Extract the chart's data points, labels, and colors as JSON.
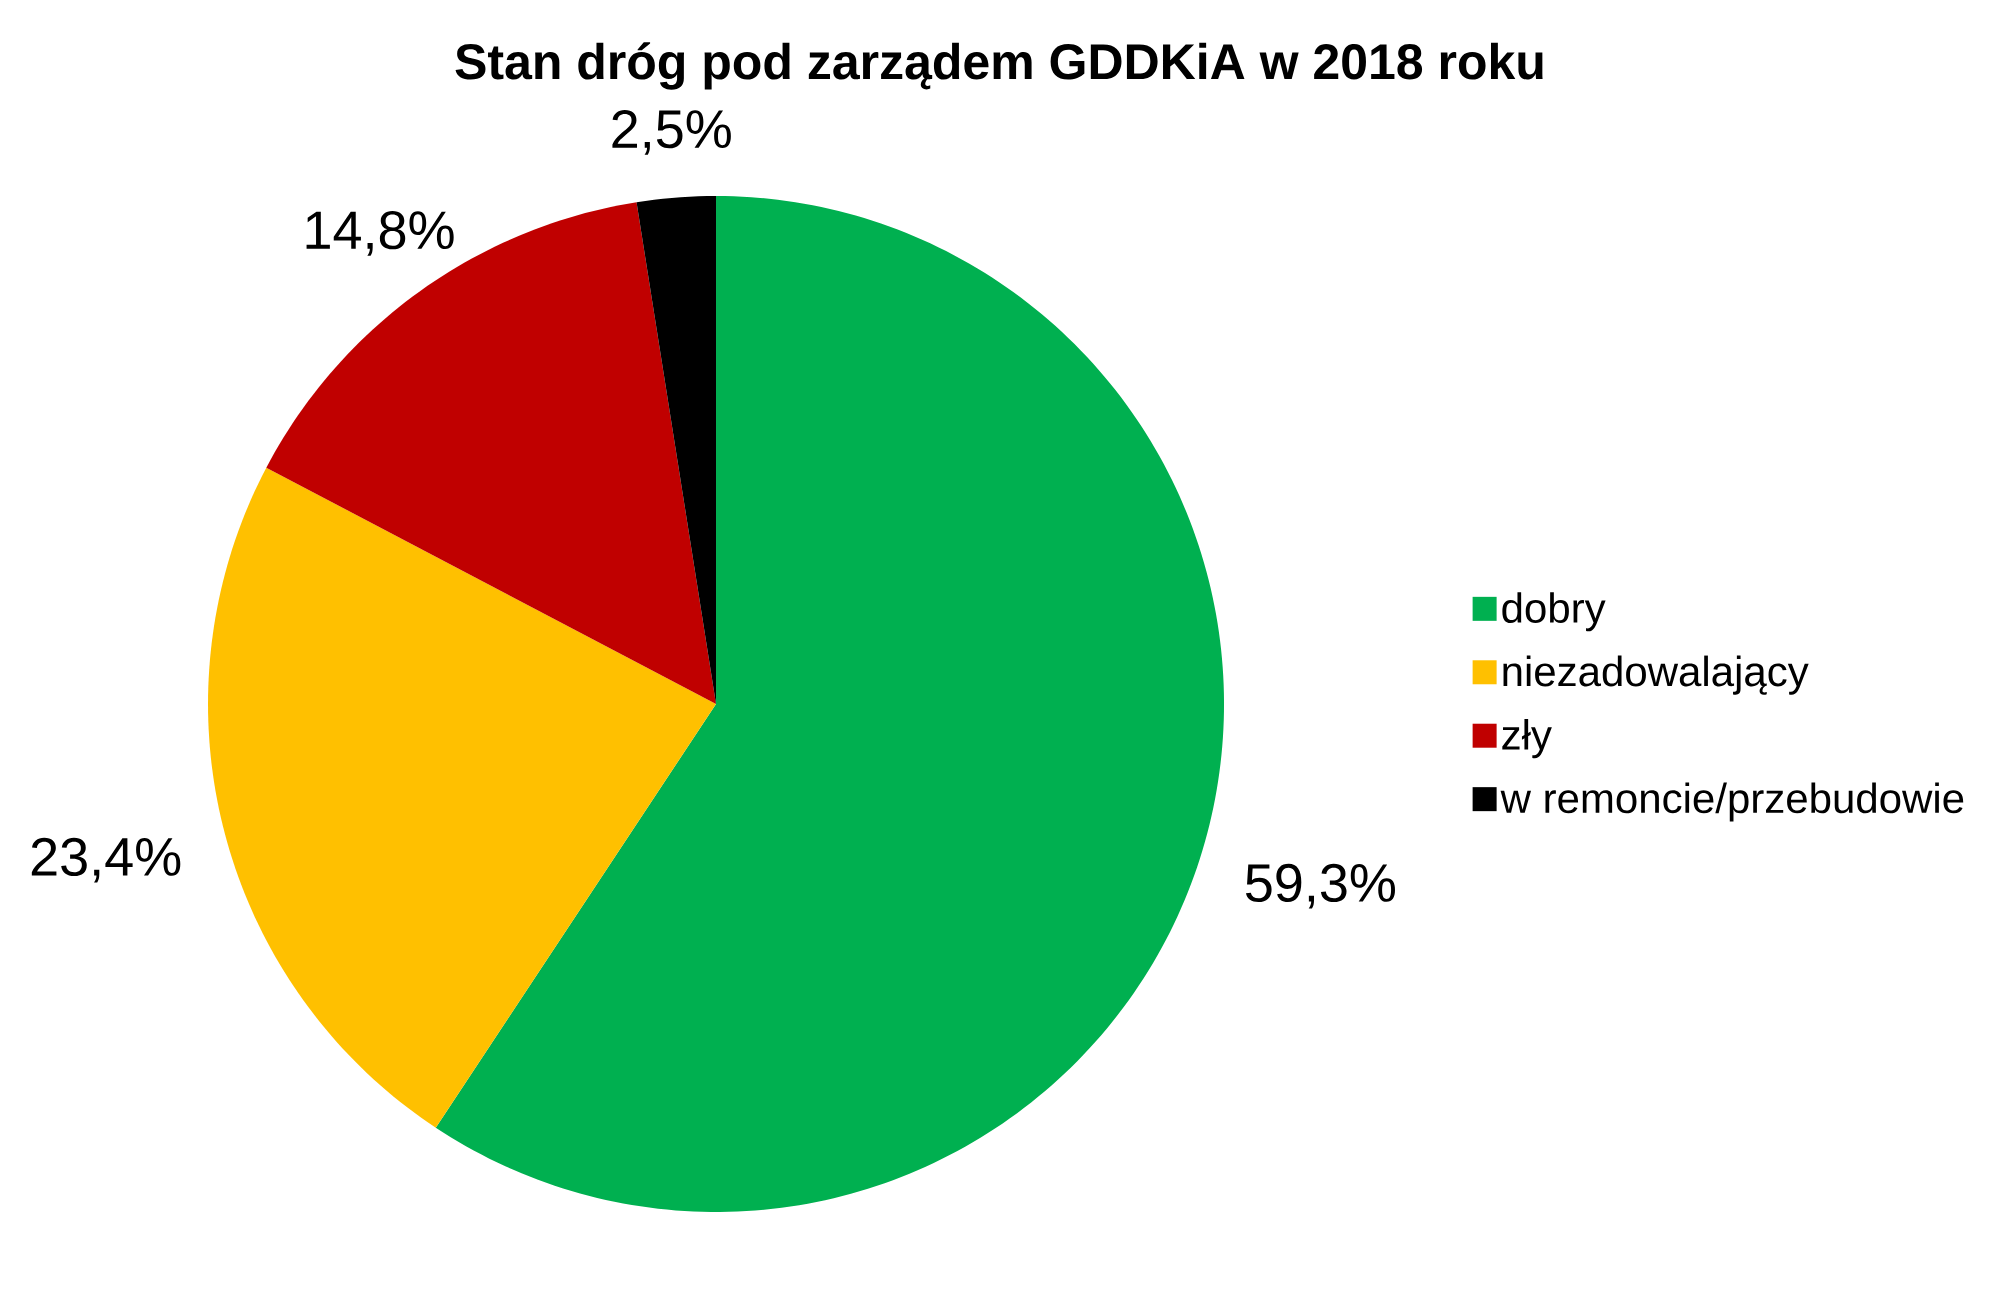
{
  "chart_data": {
    "type": "pie",
    "title": "Stan dróg pod zarządem GDDKiA w 2018 roku",
    "categories": [
      "dobry",
      "niezadowalający",
      "zły",
      "w remoncie/przebudowie"
    ],
    "values": [
      59.3,
      23.4,
      14.8,
      2.5
    ],
    "colors": [
      "#00b050",
      "#ffc000",
      "#c00000",
      "#000000"
    ],
    "value_labels": [
      "59,3%",
      "23,4%",
      "14,8%",
      "2,5%"
    ],
    "legend": "right"
  }
}
